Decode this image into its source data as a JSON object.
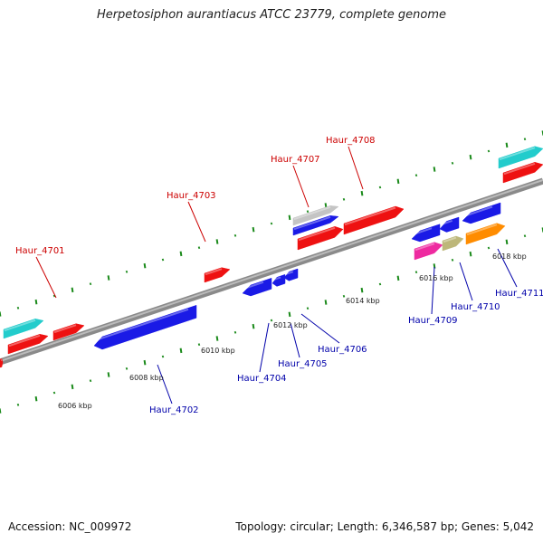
{
  "title": "Herpetosiphon aurantiacus ATCC 23779, complete genome",
  "footer": {
    "accession": "Accession: NC_009972",
    "stats": "Topology: circular; Length: 6,346,587 bp; Genes: 5,042"
  },
  "colors": {
    "backbone": "#8a8a8a",
    "tick": "#1a8a1a",
    "upper_label": "#cc0000",
    "lower_label": "#0000aa"
  },
  "kbp_labels": [
    "6006 kbp",
    "6008 kbp",
    "6010 kbp",
    "6012 kbp",
    "6014 kbp",
    "6016 kbp",
    "6018 kbp"
  ],
  "upper_genes": [
    "Haur_4701",
    "Haur_4703",
    "Haur_4707",
    "Haur_4708"
  ],
  "lower_genes": [
    "Haur_4702",
    "Haur_4704",
    "Haur_4705",
    "Haur_4706",
    "Haur_4709",
    "Haur_4710",
    "Haur_4711"
  ],
  "gene_colors": {
    "red": "#ee1111",
    "blue": "#1a1ae6",
    "cyan": "#22cccc",
    "grey": "#c4c4c4",
    "magenta": "#ee2aa0",
    "khaki": "#bdb77a",
    "orange": "#ff8c00"
  }
}
